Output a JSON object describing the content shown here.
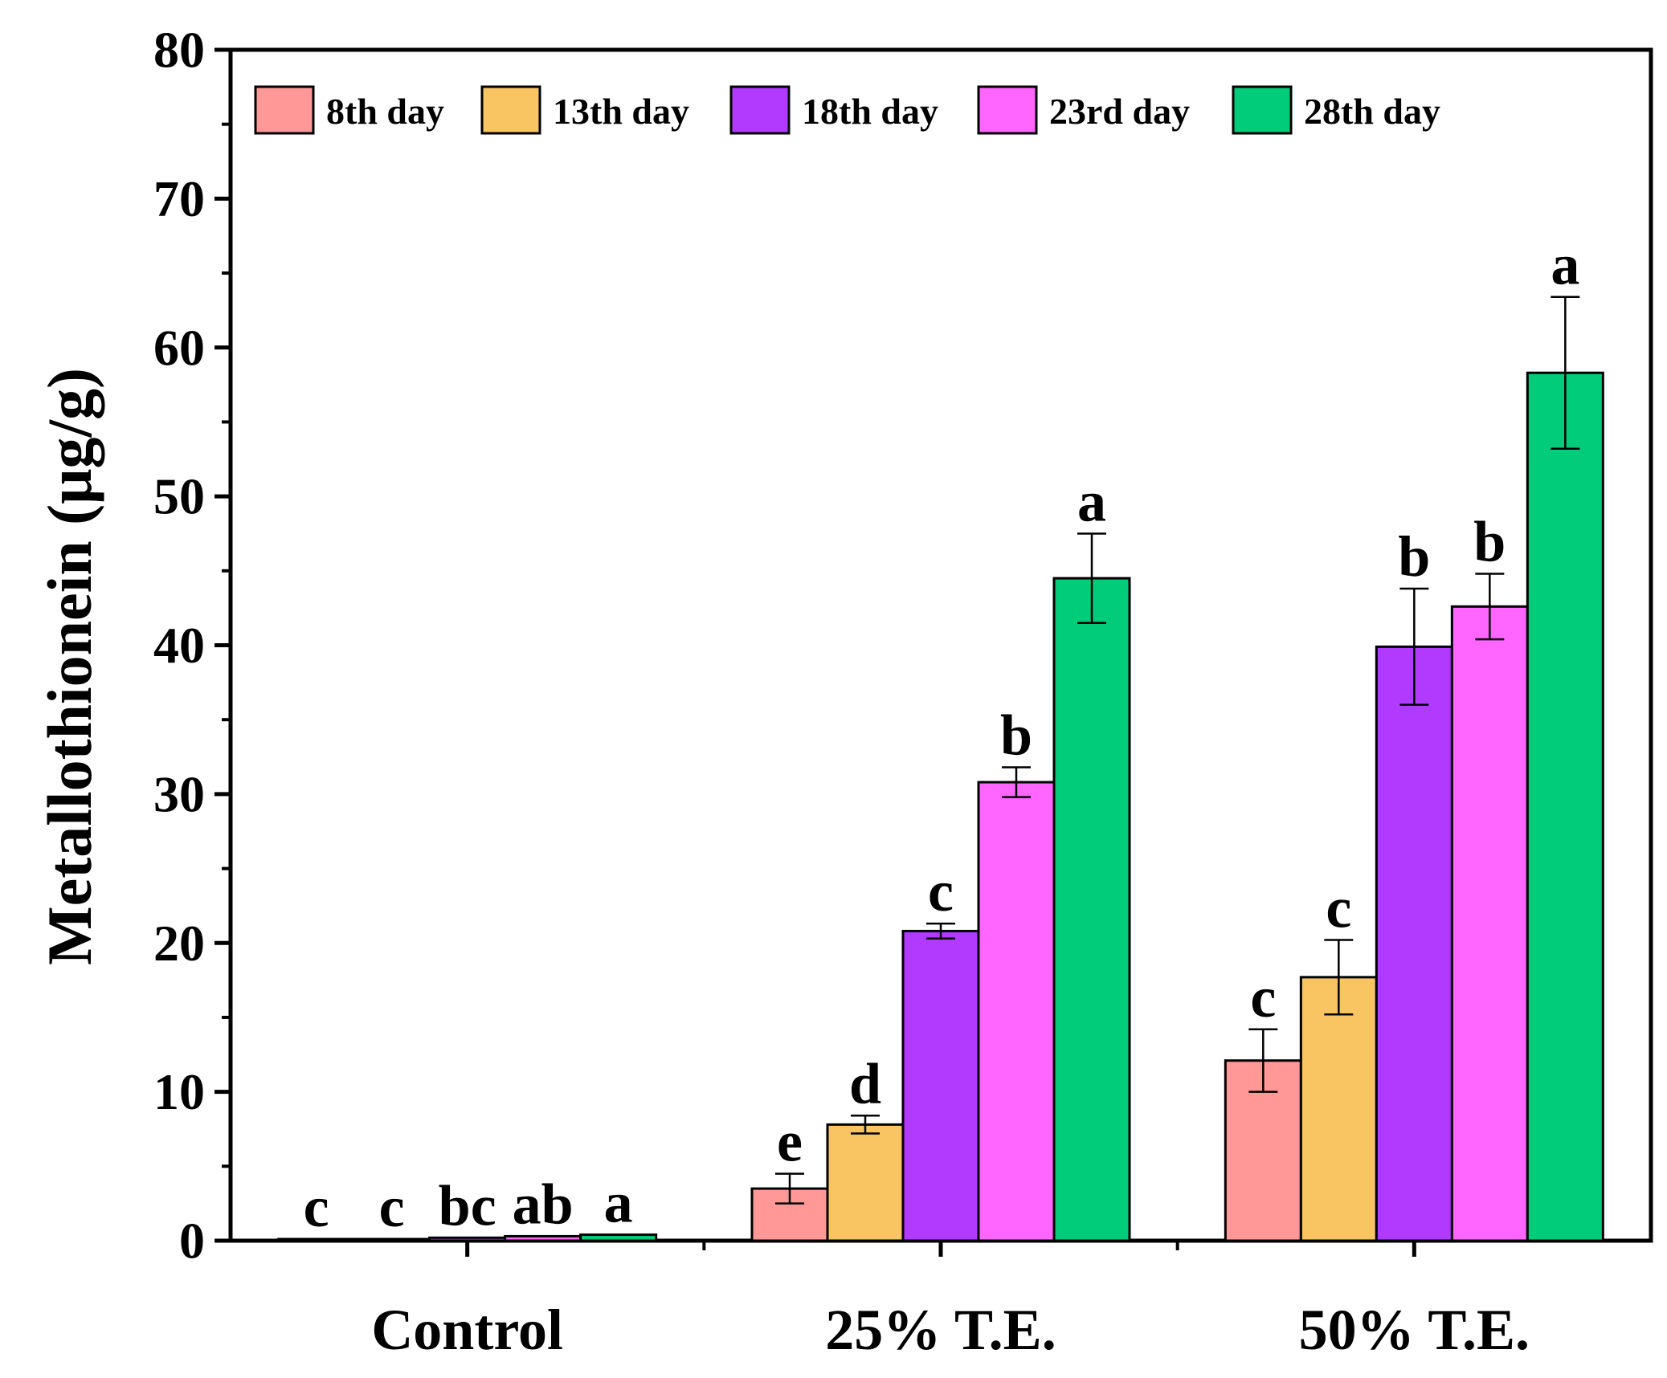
{
  "chart_data": {
    "type": "bar",
    "title": "",
    "xlabel": "",
    "ylabel": "Metallothionein (μg/g)",
    "ylim": [
      0,
      80
    ],
    "yticks": [
      0,
      10,
      20,
      30,
      40,
      50,
      60,
      70,
      80
    ],
    "categories": [
      "Control",
      "25% T.E.",
      "50% T.E."
    ],
    "legend_position": "top-left",
    "series": [
      {
        "name": "8th day",
        "color": "#FF9896",
        "values": [
          0.1,
          3.5,
          12.1
        ],
        "errors": [
          0,
          1.0,
          2.1
        ],
        "letters": [
          "c",
          "e",
          "c"
        ]
      },
      {
        "name": "13th day",
        "color": "#F9C462",
        "values": [
          0.1,
          7.8,
          17.7
        ],
        "errors": [
          0,
          0.6,
          2.5
        ],
        "letters": [
          "c",
          "d",
          "c"
        ]
      },
      {
        "name": "18th day",
        "color": "#B23AFF",
        "values": [
          0.2,
          20.8,
          39.9
        ],
        "errors": [
          0,
          0.5,
          3.9
        ],
        "letters": [
          "bc",
          "c",
          "b"
        ]
      },
      {
        "name": "23rd day",
        "color": "#FF66FF",
        "values": [
          0.3,
          30.8,
          42.6
        ],
        "errors": [
          0,
          1.0,
          2.2
        ],
        "letters": [
          "ab",
          "b",
          "b"
        ]
      },
      {
        "name": "28th day",
        "color": "#00CC7A",
        "values": [
          0.4,
          44.5,
          58.3
        ],
        "errors": [
          0,
          3.0,
          5.1
        ],
        "letters": [
          "a",
          "a",
          "a"
        ]
      }
    ]
  }
}
